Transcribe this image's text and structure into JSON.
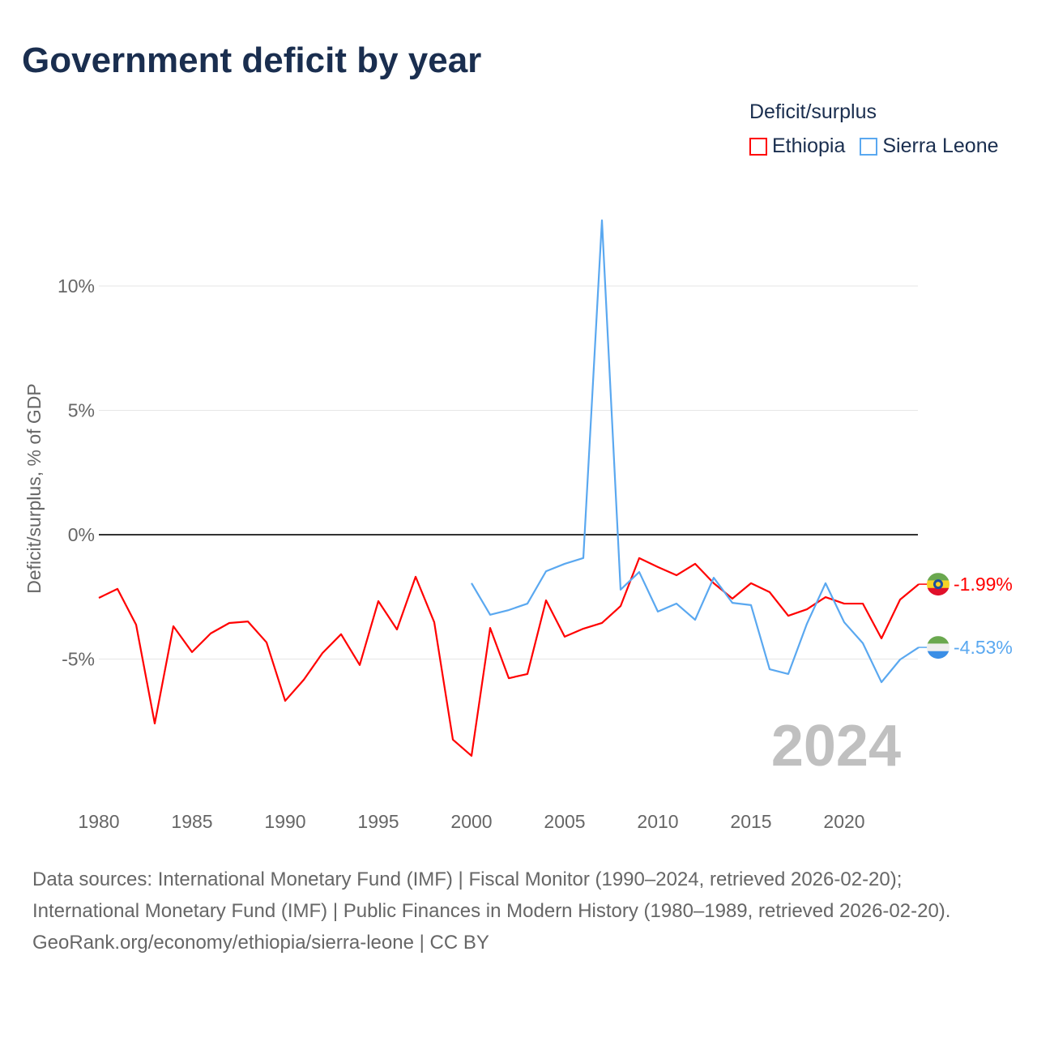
{
  "title": "Government deficit by year",
  "legend": {
    "title": "Deficit/surplus",
    "items": [
      {
        "label": "Ethiopia",
        "color": "#ff0000"
      },
      {
        "label": "Sierra Leone",
        "color": "#5aa8f0"
      }
    ]
  },
  "chart_data": {
    "type": "line",
    "title": "Government deficit by year",
    "ylabel": "Deficit/surplus, % of GDP",
    "xlabel": "",
    "xlim": [
      1980,
      2024
    ],
    "ylim": [
      -10,
      14
    ],
    "xticks": [
      1980,
      1985,
      1990,
      1995,
      2000,
      2005,
      2010,
      2015,
      2020
    ],
    "yticks": [
      {
        "v": 10,
        "label": "10%"
      },
      {
        "v": 5,
        "label": "5%"
      },
      {
        "v": 0,
        "label": "0%"
      },
      {
        "v": -5,
        "label": "-5%"
      }
    ],
    "year_label": "2024",
    "series": [
      {
        "name": "Ethiopia",
        "color": "#ff0000",
        "end_label": "-1.99%",
        "start": 1980,
        "values": [
          -2.54,
          -2.18,
          -3.62,
          -7.59,
          -3.68,
          -4.72,
          -3.97,
          -3.55,
          -3.49,
          -4.33,
          -6.68,
          -5.83,
          -4.76,
          -4.0,
          -5.24,
          -2.67,
          -3.81,
          -1.69,
          -3.52,
          -8.24,
          -8.89,
          -3.75,
          -5.77,
          -5.6,
          -2.64,
          -4.1,
          -3.78,
          -3.55,
          -2.87,
          -0.94,
          -1.3,
          -1.63,
          -1.17,
          -1.95,
          -2.57,
          -1.95,
          -2.31,
          -3.26,
          -3.0,
          -2.51,
          -2.77,
          -2.77,
          -4.17,
          -2.61,
          -1.99
        ]
      },
      {
        "name": "Sierra Leone",
        "color": "#5aa8f0",
        "end_label": "-4.53%",
        "start": 2000,
        "values": [
          -1.95,
          -3.22,
          -3.03,
          -2.77,
          -1.47,
          -1.17,
          -0.94,
          12.64,
          -2.21,
          -1.5,
          -3.09,
          -2.77,
          -3.42,
          -1.73,
          -2.74,
          -2.83,
          -5.41,
          -5.6,
          -3.58,
          -1.95,
          -3.52,
          -4.36,
          -5.93,
          -5.02,
          -4.53
        ]
      }
    ]
  },
  "footer": {
    "sources": "Data sources: International Monetary Fund (IMF) | Fiscal Monitor (1990–2024, retrieved 2026-02-20); International Monetary Fund (IMF) | Public Finances in Modern History (1980–1989, retrieved 2026-02-20).",
    "link": "GeoRank.org/economy/ethiopia/sierra-leone | CC BY"
  }
}
